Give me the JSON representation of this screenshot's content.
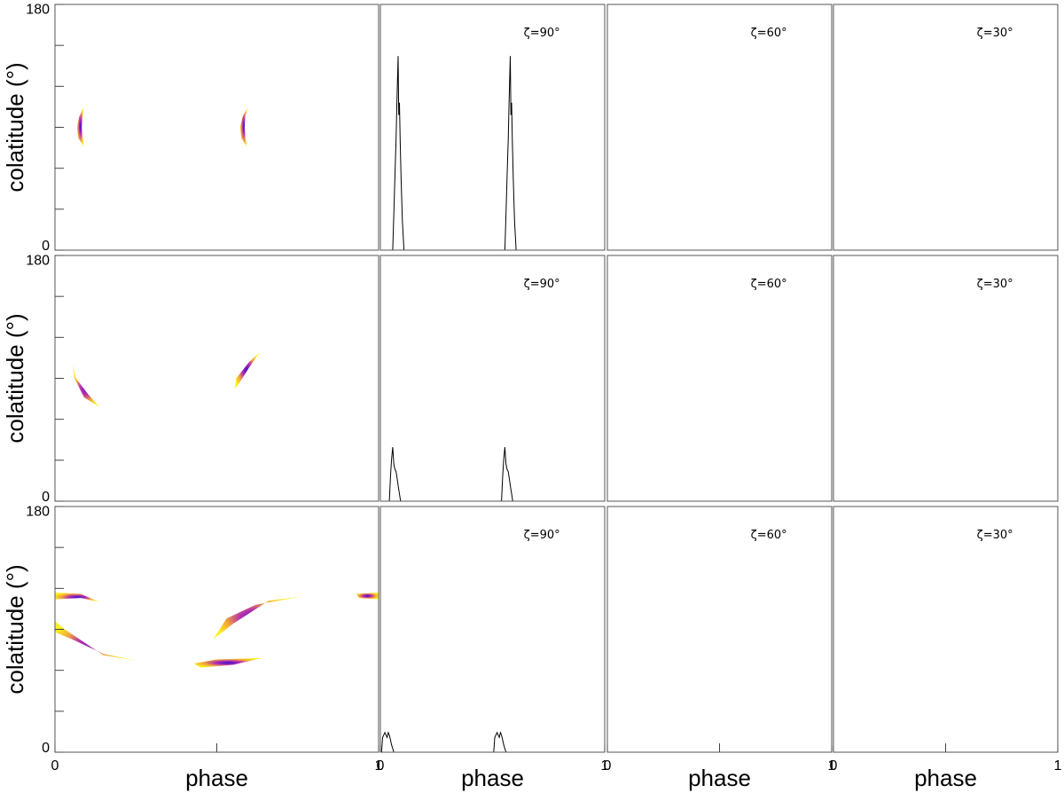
{
  "chart_data": [
    {
      "type": "map",
      "ylabel": "colatitude (°)",
      "ylim": [
        0,
        180
      ],
      "yticks": [
        0,
        180
      ],
      "yminor": [
        30,
        60,
        90,
        120,
        150
      ],
      "xlim": [
        0,
        1
      ],
      "regions": [
        {
          "phase": [
            0.09,
            0.075,
            0.068,
            0.072,
            0.09,
            0.085,
            0.083,
            0.085
          ],
          "colatitude": [
            105,
            98,
            90,
            82,
            76,
            83,
            90,
            98
          ]
        },
        {
          "phase": [
            0.597,
            0.58,
            0.572,
            0.576,
            0.593,
            0.588,
            0.586,
            0.588
          ],
          "colatitude": [
            105,
            98,
            90,
            82,
            76,
            83,
            90,
            98
          ]
        }
      ]
    },
    {
      "type": "line",
      "annotation": "ζ=90°",
      "xlim": [
        0,
        1
      ],
      "ylim": [
        0,
        1
      ],
      "x": [
        0.055,
        0.06,
        0.065,
        0.07,
        0.073,
        0.076,
        0.079,
        0.082,
        0.085,
        0.088,
        0.092,
        0.098,
        0.105,
        null,
        0.555,
        0.56,
        0.565,
        0.57,
        0.573,
        0.576,
        0.579,
        0.582,
        0.585,
        0.588,
        0.592,
        0.598,
        0.605
      ],
      "y": [
        0,
        0.15,
        0.3,
        0.45,
        0.58,
        0.68,
        0.79,
        0.55,
        0.6,
        0.45,
        0.3,
        0.12,
        0,
        null,
        0,
        0.15,
        0.3,
        0.45,
        0.58,
        0.68,
        0.79,
        0.55,
        0.6,
        0.45,
        0.3,
        0.12,
        0
      ]
    },
    {
      "type": "line",
      "annotation": "ζ=60°",
      "xlim": [
        0,
        1
      ],
      "ylim": [
        0,
        1
      ]
    },
    {
      "type": "line",
      "annotation": "ζ=30°",
      "xlim": [
        0,
        1
      ],
      "ylim": [
        0,
        1
      ]
    },
    {
      "type": "map",
      "ylabel": "colatitude (°)",
      "ylim": [
        0,
        180
      ],
      "yticks": [
        0,
        180
      ],
      "yminor": [
        30,
        60,
        90,
        120,
        150
      ],
      "xlim": [
        0,
        1
      ],
      "regions": [
        {
          "phase": [
            0.055,
            0.06,
            0.09,
            0.137,
            0.1,
            0.065,
            0.058
          ],
          "colatitude": [
            99,
            90,
            76,
            69,
            79,
            90,
            97
          ]
        },
        {
          "phase": [
            0.556,
            0.56,
            0.6,
            0.633,
            0.6,
            0.568,
            0.558
          ],
          "colatitude": [
            82,
            90,
            102,
            109,
            98,
            86,
            83
          ]
        }
      ]
    },
    {
      "type": "line",
      "annotation": "ζ=90°",
      "xlim": [
        0,
        1
      ],
      "ylim": [
        0,
        1
      ],
      "x": [
        0.04,
        0.045,
        0.05,
        0.055,
        0.06,
        0.065,
        0.07,
        0.075,
        0.08,
        0.085,
        0.09,
        null,
        0.54,
        0.545,
        0.55,
        0.555,
        0.56,
        0.565,
        0.57,
        0.575,
        0.58,
        0.585,
        0.59
      ],
      "y": [
        0,
        0.1,
        0.17,
        0.22,
        0.15,
        0.13,
        0.12,
        0.09,
        0.06,
        0.03,
        0,
        null,
        0,
        0.1,
        0.17,
        0.22,
        0.15,
        0.13,
        0.12,
        0.09,
        0.06,
        0.03,
        0
      ]
    },
    {
      "type": "line",
      "annotation": "ζ=60°",
      "xlim": [
        0,
        1
      ],
      "ylim": [
        0,
        1
      ]
    },
    {
      "type": "line",
      "annotation": "ζ=30°",
      "xlim": [
        0,
        1
      ],
      "ylim": [
        0,
        1
      ]
    },
    {
      "type": "map",
      "ylabel": "colatitude (°)",
      "ylim": [
        0,
        180
      ],
      "yticks": [
        0,
        180
      ],
      "yminor": [
        30,
        60,
        90,
        120,
        150
      ],
      "xlabel": "phase",
      "xlim": [
        0,
        1
      ],
      "xticks": [
        0,
        1
      ],
      "xminor": [
        0.5
      ],
      "regions": [
        {
          "phase": [
            0,
            0.08,
            0.137,
            0.08,
            0
          ],
          "colatitude": [
            117,
            116,
            110,
            113,
            112
          ]
        },
        {
          "phase": [
            0,
            0.03,
            0.15,
            0.255,
            0.15,
            0.05,
            0
          ],
          "colatitude": [
            96,
            90,
            71,
            67,
            72,
            83,
            88
          ]
        },
        {
          "phase": [
            0.49,
            0.53,
            0.62,
            0.76,
            0.66,
            0.55
          ],
          "colatitude": [
            83,
            98,
            108,
            114,
            111,
            94
          ]
        },
        {
          "phase": [
            0.43,
            0.5,
            0.64,
            0.55,
            0.45
          ],
          "colatitude": [
            65,
            68,
            69,
            64,
            62
          ]
        },
        {
          "phase": [
            0.93,
            1,
            1,
            0.94
          ],
          "colatitude": [
            116,
            117,
            112,
            113
          ]
        }
      ]
    },
    {
      "type": "line",
      "annotation": "ζ=90°",
      "xlabel": "phase",
      "xlim": [
        0,
        1
      ],
      "ylim": [
        0,
        1
      ],
      "xticks": [
        0,
        1
      ],
      "x": [
        0.005,
        0.01,
        0.015,
        0.02,
        0.025,
        0.03,
        0.035,
        0.04,
        0.045,
        0.05,
        0.06,
        null,
        0.505,
        0.51,
        0.515,
        0.52,
        0.525,
        0.53,
        0.535,
        0.54,
        0.545,
        0.55,
        0.56
      ],
      "y": [
        0,
        0.06,
        0.07,
        0.08,
        0.07,
        0.06,
        0.08,
        0.07,
        0.05,
        0.03,
        0,
        null,
        0,
        0.06,
        0.07,
        0.08,
        0.07,
        0.06,
        0.08,
        0.07,
        0.05,
        0.03,
        0
      ]
    },
    {
      "type": "line",
      "annotation": "ζ=60°",
      "xlabel": "phase",
      "xlim": [
        0,
        1
      ],
      "ylim": [
        0,
        1
      ],
      "xticks": [
        0,
        1
      ],
      "xminor": [
        0.5
      ]
    },
    {
      "type": "line",
      "annotation": "ζ=30°",
      "xlabel": "phase",
      "xlim": [
        0,
        1
      ],
      "ylim": [
        0,
        1
      ],
      "xticks": [
        0,
        1
      ],
      "xminor": [
        0.5
      ]
    }
  ]
}
